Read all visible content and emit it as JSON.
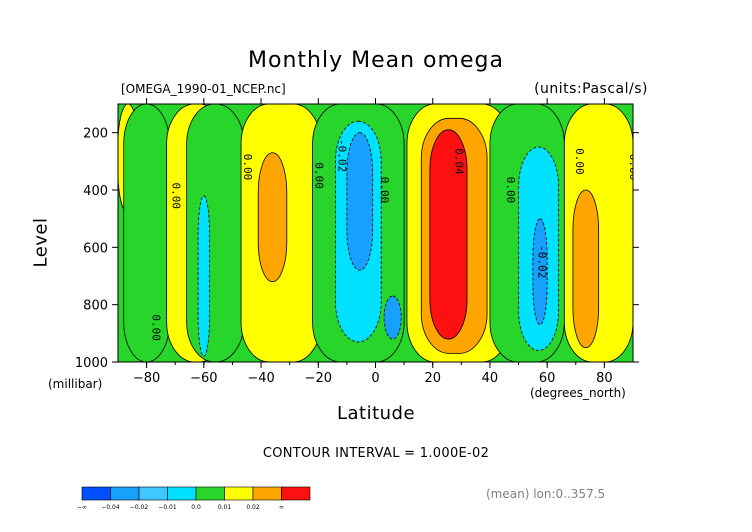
{
  "chart_data": {
    "type": "heatmap",
    "title": "Monthly Mean omega",
    "file_label": "[OMEGA_1990-01_NCEP.nc]",
    "units_label": "(units:Pascal/s)",
    "xlabel": "Latitude",
    "ylabel": "Level",
    "x_units": "(degrees_north)",
    "y_units": "(millibar)",
    "xlim": [
      -90,
      90
    ],
    "ylim": [
      1000,
      100
    ],
    "x_ticks": [
      -80,
      -60,
      -40,
      -20,
      0,
      20,
      40,
      60,
      80
    ],
    "x_tick_labels": [
      "−80",
      "−60",
      "−40",
      "−20",
      "0",
      "20",
      "40",
      "60",
      "80"
    ],
    "y_ticks": [
      200,
      400,
      600,
      800,
      1000
    ],
    "y_tick_labels": [
      "200",
      "400",
      "600",
      "800",
      "1000"
    ],
    "contour_interval": "CONTOUR INTERVAL = 1.000E-02",
    "note": "(mean) lon:0..357.5",
    "colorbar": {
      "bins": [
        {
          "color": "#0050ff",
          "label": "−0.04"
        },
        {
          "color": "#18a0ff",
          "label": "−0.02"
        },
        {
          "color": "#3fc8ff",
          "label": "−0.01"
        },
        {
          "color": "#00e0ff",
          "label": "0.0"
        },
        {
          "color": "#28d52a",
          "label": "0.01"
        },
        {
          "color": "#ffff00",
          "label": "0.02"
        },
        {
          "color": "#ffa500",
          "label": "∞"
        },
        {
          "color": "#ff1010",
          "label": ""
        }
      ],
      "left_label": "−∞"
    },
    "regions": [
      {
        "name": "yellow-sh-high",
        "level": 0.005,
        "lat": [
          -90,
          -83
        ],
        "p": [
          100,
          480
        ]
      },
      {
        "name": "green-sh-sub",
        "level": -0.005,
        "lat": [
          -88,
          -72
        ],
        "p": [
          100,
          1000
        ]
      },
      {
        "name": "yellow-sh-mid",
        "level": 0.005,
        "lat": [
          -73,
          -52
        ],
        "p": [
          100,
          1000
        ]
      },
      {
        "name": "green-sh-mid",
        "level": -0.005,
        "lat": [
          -66,
          -46
        ],
        "p": [
          100,
          1000
        ]
      },
      {
        "name": "cyan-sh-mid",
        "level": -0.015,
        "lat": [
          -62,
          -58
        ],
        "p": [
          420,
          980
        ]
      },
      {
        "name": "yellow-sh-tropic",
        "level": 0.005,
        "lat": [
          -47,
          -19
        ],
        "p": [
          100,
          1000
        ]
      },
      {
        "name": "orange-sh-tropic",
        "level": 0.015,
        "lat": [
          -41,
          -31
        ],
        "p": [
          270,
          720
        ]
      },
      {
        "name": "green-eq-south",
        "level": -0.005,
        "lat": [
          -22,
          10
        ],
        "p": [
          100,
          1000
        ]
      },
      {
        "name": "cyan-eq",
        "level": -0.015,
        "lat": [
          -14,
          2
        ],
        "p": [
          160,
          930
        ]
      },
      {
        "name": "blue-eq",
        "level": -0.025,
        "lat": [
          -10,
          -1
        ],
        "p": [
          200,
          680
        ]
      },
      {
        "name": "blue-eq-low",
        "level": -0.025,
        "lat": [
          3,
          9
        ],
        "p": [
          770,
          920
        ]
      },
      {
        "name": "yellow-nh-tropic",
        "level": 0.005,
        "lat": [
          11,
          47
        ],
        "p": [
          100,
          1000
        ]
      },
      {
        "name": "orange-nh-tropic",
        "level": 0.015,
        "lat": [
          16,
          39
        ],
        "p": [
          150,
          970
        ]
      },
      {
        "name": "red-nh-tropic",
        "level": 0.025,
        "lat": [
          19,
          32
        ],
        "p": [
          190,
          920
        ]
      },
      {
        "name": "green-nh-mid",
        "level": -0.005,
        "lat": [
          40,
          66
        ],
        "p": [
          100,
          1000
        ]
      },
      {
        "name": "cyan-nh-mid",
        "level": -0.015,
        "lat": [
          50,
          64
        ],
        "p": [
          250,
          960
        ]
      },
      {
        "name": "blue-nh-mid",
        "level": -0.025,
        "lat": [
          55,
          60
        ],
        "p": [
          500,
          870
        ]
      },
      {
        "name": "yellow-nh-high",
        "level": 0.005,
        "lat": [
          66,
          90
        ],
        "p": [
          100,
          1000
        ]
      },
      {
        "name": "orange-nh-high",
        "level": 0.015,
        "lat": [
          69,
          78
        ],
        "p": [
          400,
          950
        ]
      }
    ],
    "contour_labels": [
      {
        "text": "0.00",
        "lat": -71,
        "p": 420
      },
      {
        "text": "0.00",
        "lat": -46,
        "p": 320
      },
      {
        "text": "0.00",
        "lat": -21,
        "p": 350
      },
      {
        "text": "-0.02",
        "lat": -13,
        "p": 280
      },
      {
        "text": "0.00",
        "lat": 2,
        "p": 400
      },
      {
        "text": "0.04",
        "lat": 28,
        "p": 300
      },
      {
        "text": "0.00",
        "lat": 46,
        "p": 400
      },
      {
        "text": "-0.02",
        "lat": 57,
        "p": 650
      },
      {
        "text": "0.00",
        "lat": 70,
        "p": 300
      },
      {
        "text": "0.00",
        "lat": 89,
        "p": 320
      },
      {
        "text": "0.00",
        "lat": -78,
        "p": 880
      }
    ]
  }
}
